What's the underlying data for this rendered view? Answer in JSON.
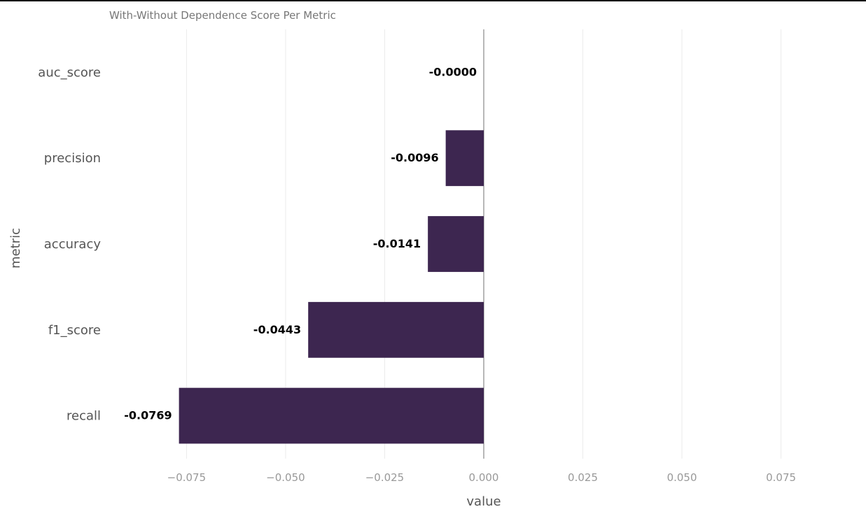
{
  "chart_data": {
    "type": "bar",
    "orientation": "horizontal",
    "title": "With-Without Dependence Score Per Metric",
    "xlabel": "value",
    "ylabel": "metric",
    "categories": [
      "auc_score",
      "precision",
      "accuracy",
      "f1_score",
      "recall"
    ],
    "values": [
      -0.0,
      -0.0096,
      -0.0141,
      -0.0443,
      -0.0769
    ],
    "data_labels": [
      "-0.0000",
      "-0.0096",
      "-0.0141",
      "-0.0443",
      "-0.0769"
    ],
    "xlim": [
      -0.0945,
      0.0945
    ],
    "xticks": [
      -0.075,
      -0.05,
      -0.025,
      0.0,
      0.025,
      0.05,
      0.075
    ],
    "xtick_labels": [
      "−0.075",
      "−0.050",
      "−0.025",
      "0.000",
      "0.025",
      "0.050",
      "0.075"
    ],
    "grid": "vertical",
    "legend": "none",
    "bar_color": "#3d2650",
    "grid_color": "#ebebeb",
    "zero_line_color": "#888888"
  }
}
